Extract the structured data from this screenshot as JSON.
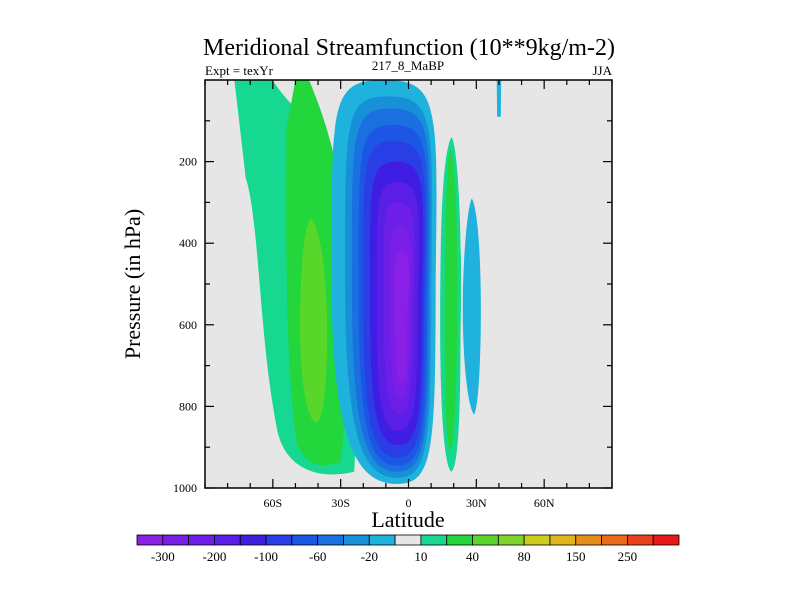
{
  "chart_data": {
    "type": "heatmap",
    "title": "Meridional Streamfunction (10**9kg/m-2)",
    "subtitle_left": "Expt = texYr",
    "subtitle_center": "217_8_MaBP",
    "subtitle_right": "JJA",
    "xlabel": "Latitude",
    "ylabel": "Pressure (in hPa)",
    "xlim": [
      -90,
      90
    ],
    "ylim": [
      0,
      1000
    ],
    "y_inverted": true,
    "x_ticks": [
      {
        "value": -60,
        "label": "60S"
      },
      {
        "value": -30,
        "label": "30S"
      },
      {
        "value": 0,
        "label": "0"
      },
      {
        "value": 30,
        "label": "30N"
      },
      {
        "value": 60,
        "label": "60N"
      }
    ],
    "y_ticks": [
      {
        "value": 200,
        "label": "200"
      },
      {
        "value": 400,
        "label": "400"
      },
      {
        "value": 600,
        "label": "600"
      },
      {
        "value": 800,
        "label": "800"
      },
      {
        "value": 1000,
        "label": "1000"
      }
    ],
    "colorbar": {
      "levels": [
        -300,
        -250,
        -200,
        -150,
        -100,
        -80,
        -60,
        -40,
        -20,
        -10,
        10,
        20,
        40,
        60,
        80,
        100,
        150,
        200,
        250,
        300
      ],
      "colors": [
        "#8a1fe6",
        "#7a1ee8",
        "#6d1fe8",
        "#5a1ee6",
        "#3f1ee4",
        "#2a3ee6",
        "#1c56e4",
        "#1a70e0",
        "#1890d8",
        "#1eb2dc",
        "#e6e6e6",
        "#17d890",
        "#22d63c",
        "#59d62a",
        "#7ed42a",
        "#cccc1e",
        "#e0b41a",
        "#e88c1a",
        "#ea6a1a",
        "#ea401c",
        "#e61a1a"
      ],
      "labels": [
        "-300",
        "-200",
        "-100",
        "-60",
        "-20",
        "10",
        "40",
        "80",
        "150",
        "250"
      ],
      "background": "#e6e6e6"
    },
    "features": [
      {
        "sign": "positive",
        "lat_range": [
          -78,
          -12
        ],
        "p_range": [
          0,
          970
        ],
        "peak_band": "60",
        "peak_lat": -42,
        "peak_p": 600
      },
      {
        "sign": "negative",
        "lat_range": [
          -20,
          18
        ],
        "p_range": [
          0,
          990
        ],
        "peak_band": "-300",
        "peak_lat": -2,
        "peak_p": 560
      },
      {
        "sign": "positive",
        "lat_range": [
          14,
          22
        ],
        "p_range": [
          140,
          960
        ],
        "peak_band": "20",
        "peak_lat": 18,
        "peak_p": 550
      },
      {
        "sign": "negative",
        "lat_range": [
          24,
          32
        ],
        "p_range": [
          290,
          820
        ],
        "peak_band": "-10",
        "peak_lat": 28,
        "peak_p": 530
      },
      {
        "sign": "negative",
        "lat_range": [
          39,
          41
        ],
        "p_range": [
          0,
          90
        ],
        "peak_band": "-10",
        "peak_lat": 40,
        "peak_p": 40
      }
    ]
  }
}
